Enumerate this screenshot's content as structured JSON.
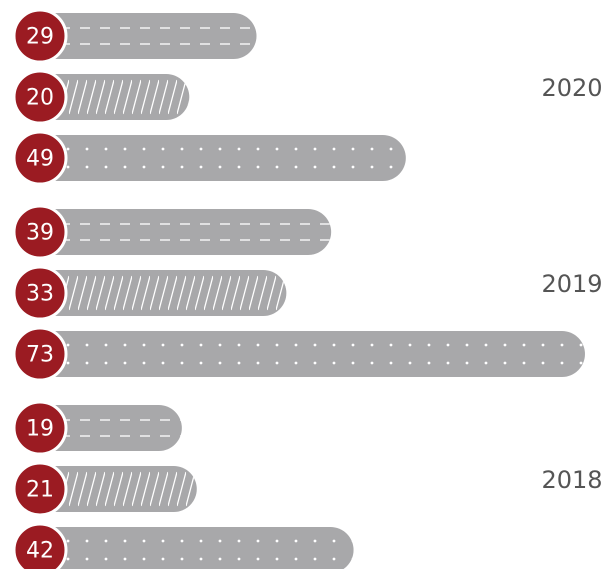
{
  "chart_data": {
    "type": "bar",
    "orientation": "horizontal",
    "categories": [
      "2020",
      "2019",
      "2018"
    ],
    "series": [
      {
        "color": "#a8a8aa",
        "pattern": "dashed",
        "values": [
          29,
          39,
          19
        ]
      },
      {
        "color": "#a8a8aa",
        "pattern": "hatched",
        "values": [
          20,
          33,
          21
        ]
      },
      {
        "color": "#a8a8aa",
        "pattern": "dotted",
        "values": [
          49,
          73,
          42
        ]
      }
    ],
    "label_color": "#9b1b22"
  }
}
